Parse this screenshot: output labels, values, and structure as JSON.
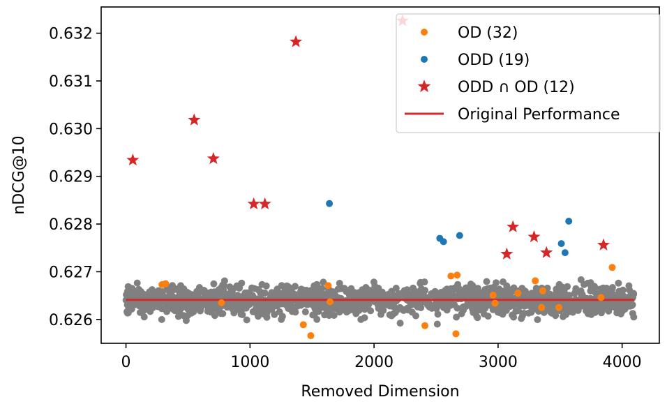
{
  "chart_data": {
    "type": "scatter",
    "xlabel": "Removed Dimension",
    "ylabel": "nDCG@10",
    "xlim": [
      -200,
      4300
    ],
    "ylim": [
      0.6255,
      0.63255
    ],
    "xticks": [
      0,
      1000,
      2000,
      3000,
      4000
    ],
    "xtick_labels": [
      "0",
      "1000",
      "2000",
      "3000",
      "4000"
    ],
    "yticks": [
      0.626,
      0.627,
      0.628,
      0.629,
      0.63,
      0.631,
      0.632
    ],
    "ytick_labels": [
      "0.626",
      "0.627",
      "0.628",
      "0.629",
      "0.630",
      "0.631",
      "0.632"
    ],
    "grid": false,
    "legend_position": "top-right",
    "colors": {
      "background_points": "#808080",
      "od": "#ff7f0e",
      "odd": "#1f77b4",
      "odd_and_od": "#d62728",
      "original": "#d62728"
    },
    "background": {
      "x_range": [
        0,
        4095
      ],
      "y_center": 0.62641,
      "y_spread": 0.00075
    },
    "original_performance": 0.62641,
    "series": [
      {
        "name": "OD (32)",
        "marker": "dot",
        "points": [
          [
            290,
            0.62673
          ],
          [
            320,
            0.62675
          ],
          [
            770,
            0.62635
          ],
          [
            1430,
            0.62589
          ],
          [
            1490,
            0.62566
          ],
          [
            1630,
            0.62671
          ],
          [
            1645,
            0.62637
          ],
          [
            2410,
            0.62587
          ],
          [
            2620,
            0.62691
          ],
          [
            2670,
            0.62693
          ],
          [
            2660,
            0.6257
          ],
          [
            2960,
            0.62651
          ],
          [
            2975,
            0.62634
          ],
          [
            3160,
            0.62655
          ],
          [
            3300,
            0.62681
          ],
          [
            3350,
            0.62625
          ],
          [
            3360,
            0.6266
          ],
          [
            3490,
            0.62625
          ],
          [
            3830,
            0.62646
          ],
          [
            3920,
            0.62709
          ]
        ]
      },
      {
        "name": "ODD (19)",
        "marker": "dot",
        "points": [
          [
            1640,
            0.62843
          ],
          [
            2530,
            0.6277
          ],
          [
            2560,
            0.62763
          ],
          [
            2690,
            0.62776
          ],
          [
            3510,
            0.62759
          ],
          [
            3540,
            0.6274
          ],
          [
            3570,
            0.62806
          ]
        ]
      },
      {
        "name": "ODD ∩ OD (12)",
        "marker": "star",
        "points": [
          [
            55,
            0.62934
          ],
          [
            550,
            0.63018
          ],
          [
            705,
            0.62937
          ],
          [
            1030,
            0.62842
          ],
          [
            1120,
            0.62842
          ],
          [
            1370,
            0.63182
          ],
          [
            2230,
            0.63226
          ],
          [
            3070,
            0.62737
          ],
          [
            3120,
            0.62794
          ],
          [
            3290,
            0.62773
          ],
          [
            3390,
            0.6274
          ],
          [
            3850,
            0.62756
          ]
        ]
      }
    ],
    "legend": [
      {
        "label": "OD (32)",
        "marker": "dot",
        "color": "#ff7f0e"
      },
      {
        "label": "ODD (19)",
        "marker": "dot",
        "color": "#1f77b4"
      },
      {
        "label": "ODD ∩ OD (12)",
        "marker": "star",
        "color": "#d62728"
      },
      {
        "label": "Original Performance",
        "marker": "line",
        "color": "#d62728"
      }
    ]
  }
}
